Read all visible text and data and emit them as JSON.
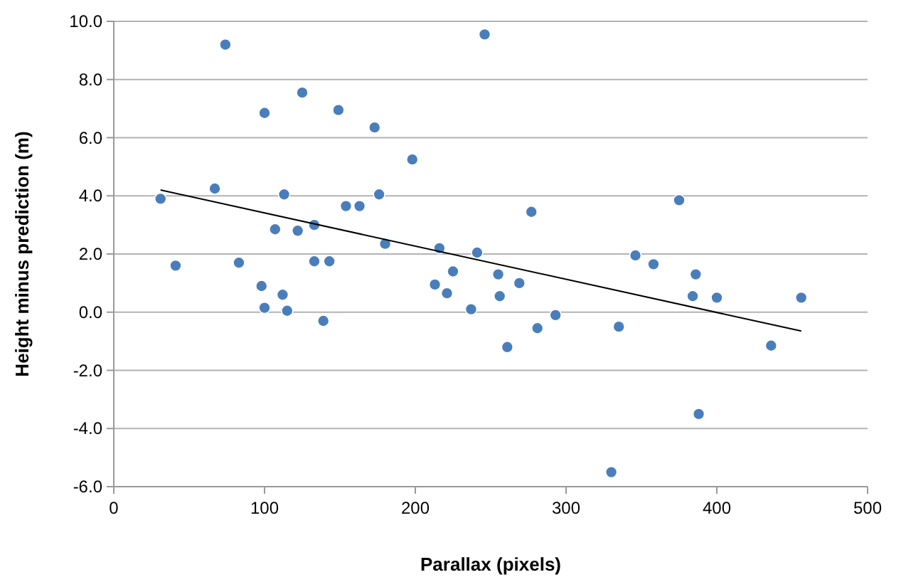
{
  "chart_data": {
    "type": "scatter",
    "xlabel": "Parallax (pixels)",
    "ylabel": "Height minus prediction (m)",
    "xlim": [
      0,
      500
    ],
    "xticks": [
      0,
      100,
      200,
      300,
      400,
      500
    ],
    "ylim": [
      -6,
      10
    ],
    "yticks": [
      {
        "value": -6,
        "label": "-6.0"
      },
      {
        "value": -4,
        "label": "-4.0"
      },
      {
        "value": -2,
        "label": "-2.0"
      },
      {
        "value": 0,
        "label": "0.0"
      },
      {
        "value": 2,
        "label": "2.0"
      },
      {
        "value": 4,
        "label": "4.0"
      },
      {
        "value": 6,
        "label": "6.0"
      },
      {
        "value": 8,
        "label": "8.0"
      },
      {
        "value": 10,
        "label": "10.0"
      }
    ],
    "grid": "y",
    "marker": "circle",
    "series": [
      {
        "type": "scatter",
        "color": "#4a7ebb",
        "x": [
          31,
          41,
          67,
          74,
          83,
          98,
          100,
          100,
          107,
          112,
          113,
          115,
          122,
          125,
          133,
          133,
          139,
          143,
          149,
          154,
          163,
          173,
          176,
          180,
          198,
          213,
          216,
          221,
          225,
          237,
          241,
          246,
          255,
          256,
          261,
          269,
          277,
          281,
          293,
          330,
          335,
          346,
          358,
          375,
          384,
          386,
          388,
          400,
          436,
          456
        ],
        "values": [
          3.9,
          1.6,
          4.25,
          9.2,
          1.7,
          0.9,
          6.85,
          0.15,
          2.85,
          0.6,
          4.05,
          0.05,
          2.8,
          7.55,
          3.0,
          1.75,
          -0.3,
          1.75,
          6.95,
          3.65,
          3.65,
          6.35,
          4.05,
          2.35,
          5.25,
          0.95,
          2.2,
          0.65,
          1.4,
          0.1,
          2.05,
          9.55,
          1.3,
          0.55,
          -1.2,
          1.0,
          3.45,
          -0.55,
          -0.1,
          -5.5,
          -0.5,
          1.95,
          1.65,
          3.85,
          0.55,
          1.3,
          -3.5,
          0.5,
          -1.15,
          0.5
        ]
      },
      {
        "type": "line",
        "color": "#000000",
        "x": [
          31,
          456
        ],
        "values": [
          4.2,
          -0.65
        ],
        "marker": "none",
        "line_style": "solid"
      }
    ]
  }
}
